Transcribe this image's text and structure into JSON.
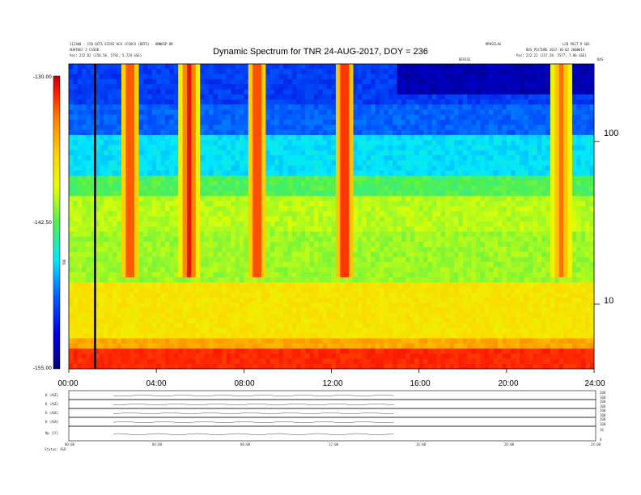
{
  "header": {
    "title": "Dynamic Spectrum for TNR 24-AUG-2017, DOY = 236",
    "left_line1": "112300 - 150 QCCS ECOSS OCA (CSRCO (DOTS) - ONNOSP BR",
    "left_line2": "ADHTEEC 2 CSSOD",
    "left_line3": "Pos: 252.02 (258.58, 5792, 5.724 GSE)",
    "right_line1": "MPOSCLAG",
    "right_line2": "LCB POCT 9 S01",
    "right_line3": "BUS_PICTURE 2017-10-02 2000014",
    "right_line4": "Pos: 252.22 (257.28, 5577, 7.06 GSE)",
    "inside_label": "DEVICE",
    "corner_label": "BAS"
  },
  "colorbar": {
    "ticks": [
      "-130.00",
      "-142.50",
      "-155.00"
    ],
    "label": "TNR"
  },
  "chart_data": {
    "type": "heatmap",
    "title": "Dynamic Spectrum for TNR 24-AUG-2017, DOY = 236",
    "x_ticks": [
      "00:00",
      "04:00",
      "08:00",
      "12:00",
      "16:00",
      "20:00",
      "24:00"
    ],
    "xlim_hours": [
      0,
      24
    ],
    "y_scale": "log",
    "y_ticks": [
      100,
      10
    ],
    "ylim": [
      4,
      300
    ],
    "color_range": [
      -155.0,
      -130.0
    ],
    "colormap": [
      "#00007a",
      "#0000e0",
      "#0060ff",
      "#00e8ff",
      "#4ff04f",
      "#e8ff00",
      "#ffd000",
      "#ff7a00",
      "#ff2000",
      "#c00000"
    ],
    "marker_line_hour": 1.2,
    "bursts": [
      {
        "hour": 2.8,
        "intensity": 0.85
      },
      {
        "hour": 5.5,
        "intensity": 0.95
      },
      {
        "hour": 8.6,
        "intensity": 0.9
      },
      {
        "hour": 12.6,
        "intensity": 1.0
      },
      {
        "hour": 22.5,
        "intensity": 0.6
      }
    ]
  },
  "bottom_panels": {
    "labels": [
      "B (AGE)",
      "B (AGE)",
      "B (AGE)",
      "B (AGE)",
      "Np (CC)"
    ],
    "right_ticks": [
      [
        "200",
        "100"
      ],
      [
        "200",
        "100"
      ],
      [
        "200",
        "100"
      ],
      [
        "200",
        "100"
      ],
      [
        "10",
        "0"
      ]
    ],
    "x_ticks": [
      "00:00",
      "04:00",
      "08:00",
      "12:00",
      "16:00",
      "20:00",
      "24:00"
    ],
    "footer": "Status: ASD"
  }
}
